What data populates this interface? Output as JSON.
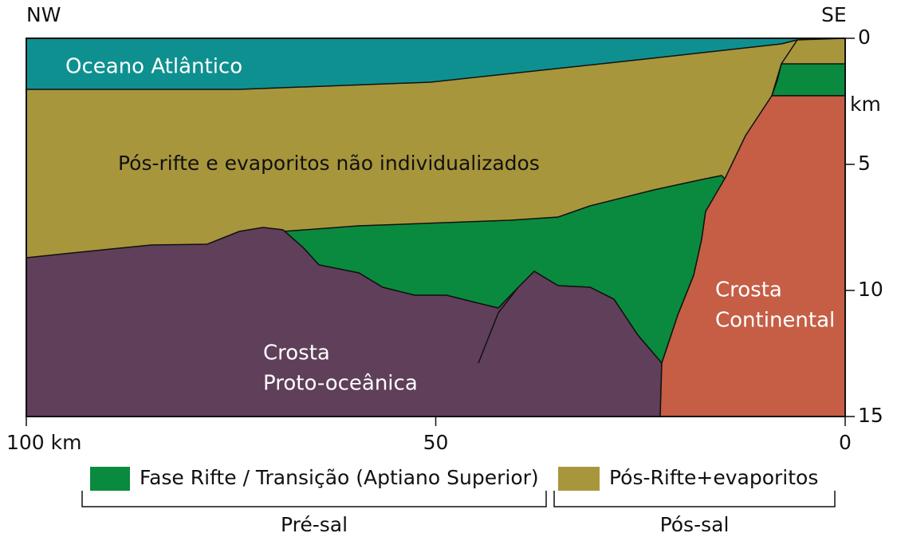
{
  "header": {
    "left": "NW",
    "right": "SE"
  },
  "regions": {
    "ocean": "Oceano Atlântico",
    "post_rift": "Pós-rifte e evaporitos não individualizados",
    "proto_crust": [
      "Crosta",
      "Proto-oceânica"
    ],
    "continental_crust": [
      "Crosta",
      "Continental"
    ]
  },
  "depth_axis": {
    "unit": "km",
    "ticks": [
      "0",
      "5",
      "10",
      "15"
    ]
  },
  "distance_axis": {
    "ticks": [
      "100 km",
      "50",
      "0"
    ]
  },
  "legend": {
    "items": [
      "Fase Rifte / Transição (Aptiano Superior)",
      "Pós-Rifte+evaporitos"
    ]
  },
  "brackets": [
    "Pré-sal",
    "Pós-sal"
  ]
}
